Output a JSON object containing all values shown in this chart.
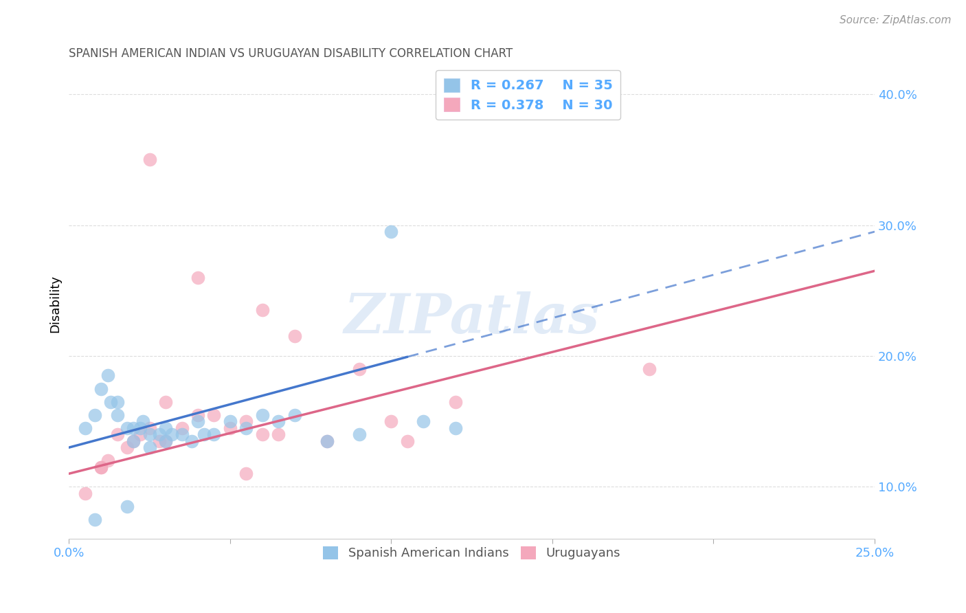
{
  "title": "SPANISH AMERICAN INDIAN VS URUGUAYAN DISABILITY CORRELATION CHART",
  "source": "Source: ZipAtlas.com",
  "ylabel": "Disability",
  "watermark": "ZIPatlas",
  "xlim": [
    0.0,
    0.25
  ],
  "ylim": [
    0.06,
    0.42
  ],
  "xtick_vals": [
    0.0,
    0.05,
    0.1,
    0.15,
    0.2,
    0.25
  ],
  "xtick_labels": [
    "0.0%",
    "",
    "",
    "",
    "",
    "25.0%"
  ],
  "ytick_vals": [
    0.1,
    0.2,
    0.3,
    0.4
  ],
  "ytick_labels": [
    "10.0%",
    "20.0%",
    "30.0%",
    "40.0%"
  ],
  "blue_R": 0.267,
  "blue_N": 35,
  "pink_R": 0.378,
  "pink_N": 30,
  "blue_color": "#94c4e8",
  "pink_color": "#f4a8bc",
  "blue_line_color": "#4477cc",
  "pink_line_color": "#dd6688",
  "tick_color": "#55aaff",
  "legend_text_color": "#55aaff",
  "background_color": "#ffffff",
  "grid_color": "#dddddd",
  "blue_x": [
    0.005,
    0.008,
    0.01,
    0.012,
    0.013,
    0.015,
    0.015,
    0.018,
    0.02,
    0.02,
    0.022,
    0.023,
    0.025,
    0.025,
    0.028,
    0.03,
    0.03,
    0.032,
    0.035,
    0.038,
    0.04,
    0.042,
    0.045,
    0.05,
    0.055,
    0.06,
    0.065,
    0.07,
    0.08,
    0.09,
    0.1,
    0.11,
    0.12,
    0.018,
    0.008
  ],
  "blue_y": [
    0.145,
    0.155,
    0.175,
    0.185,
    0.165,
    0.155,
    0.165,
    0.145,
    0.135,
    0.145,
    0.145,
    0.15,
    0.13,
    0.14,
    0.14,
    0.135,
    0.145,
    0.14,
    0.14,
    0.135,
    0.15,
    0.14,
    0.14,
    0.15,
    0.145,
    0.155,
    0.15,
    0.155,
    0.135,
    0.14,
    0.295,
    0.15,
    0.145,
    0.085,
    0.075
  ],
  "pink_x": [
    0.005,
    0.01,
    0.012,
    0.018,
    0.02,
    0.022,
    0.025,
    0.03,
    0.035,
    0.04,
    0.045,
    0.05,
    0.055,
    0.06,
    0.065,
    0.08,
    0.1,
    0.105,
    0.12,
    0.18,
    0.025,
    0.04,
    0.06,
    0.07,
    0.028,
    0.01,
    0.015,
    0.03,
    0.055,
    0.09
  ],
  "pink_y": [
    0.095,
    0.115,
    0.12,
    0.13,
    0.135,
    0.14,
    0.145,
    0.135,
    0.145,
    0.155,
    0.155,
    0.145,
    0.15,
    0.14,
    0.14,
    0.135,
    0.15,
    0.135,
    0.165,
    0.19,
    0.35,
    0.26,
    0.235,
    0.215,
    0.135,
    0.115,
    0.14,
    0.165,
    0.11,
    0.19
  ],
  "blue_line_x0": 0.0,
  "blue_line_x_solid_end": 0.105,
  "blue_line_x1": 0.25,
  "blue_line_y0": 0.13,
  "blue_line_y1": 0.295,
  "pink_line_x0": 0.0,
  "pink_line_x1": 0.25,
  "pink_line_y0": 0.11,
  "pink_line_y1": 0.265
}
